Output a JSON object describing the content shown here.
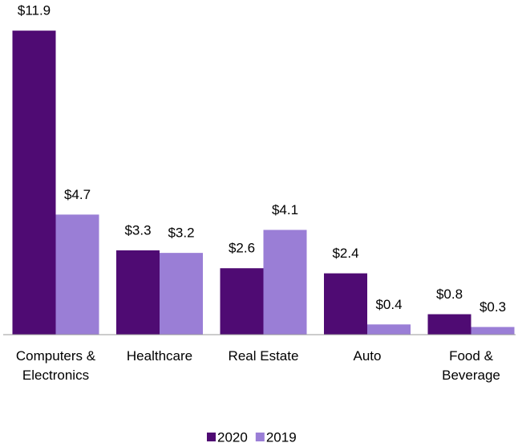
{
  "chart_data": {
    "type": "bar",
    "categories": [
      "Computers & Electronics",
      "Healthcare",
      "Real Estate",
      "Auto",
      "Food & Beverage"
    ],
    "series": [
      {
        "name": "2020",
        "color": "#4f0b73",
        "values": [
          11.9,
          3.3,
          2.6,
          2.4,
          0.8
        ],
        "value_labels": [
          "$11.9",
          "$3.3",
          "$2.6",
          "$2.4",
          "$0.8"
        ]
      },
      {
        "name": "2019",
        "color": "#9a7ed6",
        "values": [
          4.7,
          3.2,
          4.1,
          0.4,
          0.3
        ],
        "value_labels": [
          "$4.7",
          "$3.2",
          "$4.1",
          "$0.4",
          "$0.3"
        ]
      }
    ],
    "ylim": [
      0,
      12
    ]
  }
}
